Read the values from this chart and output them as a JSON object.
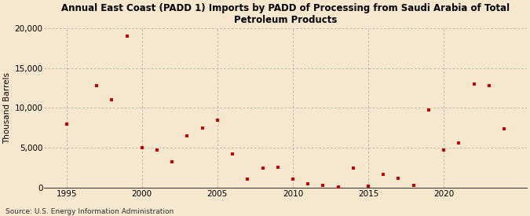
{
  "title_line1": "Annual East Coast (PADD 1) Imports by PADD of Processing from Saudi Arabia of Total",
  "title_line2": "Petroleum Products",
  "ylabel": "Thousand Barrels",
  "source": "Source: U.S. Energy Information Administration",
  "background_color": "#f5e8cf",
  "plot_bg_color": "#f5e8cf",
  "marker_color": "#cc0000",
  "xlim": [
    1993.5,
    2025.5
  ],
  "ylim": [
    0,
    20000
  ],
  "yticks": [
    0,
    5000,
    10000,
    15000,
    20000
  ],
  "xticks": [
    1995,
    2000,
    2005,
    2010,
    2015,
    2020
  ],
  "years": [
    1995,
    1997,
    1998,
    1999,
    2000,
    2001,
    2002,
    2003,
    2004,
    2005,
    2006,
    2007,
    2008,
    2009,
    2010,
    2011,
    2012,
    2013,
    2014,
    2015,
    2016,
    2017,
    2018,
    2019,
    2020,
    2021,
    2022,
    2023,
    2024
  ],
  "values": [
    8000,
    12800,
    11000,
    19000,
    5000,
    4700,
    3200,
    6500,
    7500,
    8500,
    4200,
    1100,
    2400,
    2500,
    1100,
    500,
    300,
    100,
    2400,
    200,
    1700,
    1200,
    300,
    9700,
    4700,
    5600,
    13000,
    12800,
    7400
  ],
  "title_fontsize": 8.5,
  "axis_fontsize": 7.5,
  "tick_fontsize": 7.5,
  "source_fontsize": 6.5
}
